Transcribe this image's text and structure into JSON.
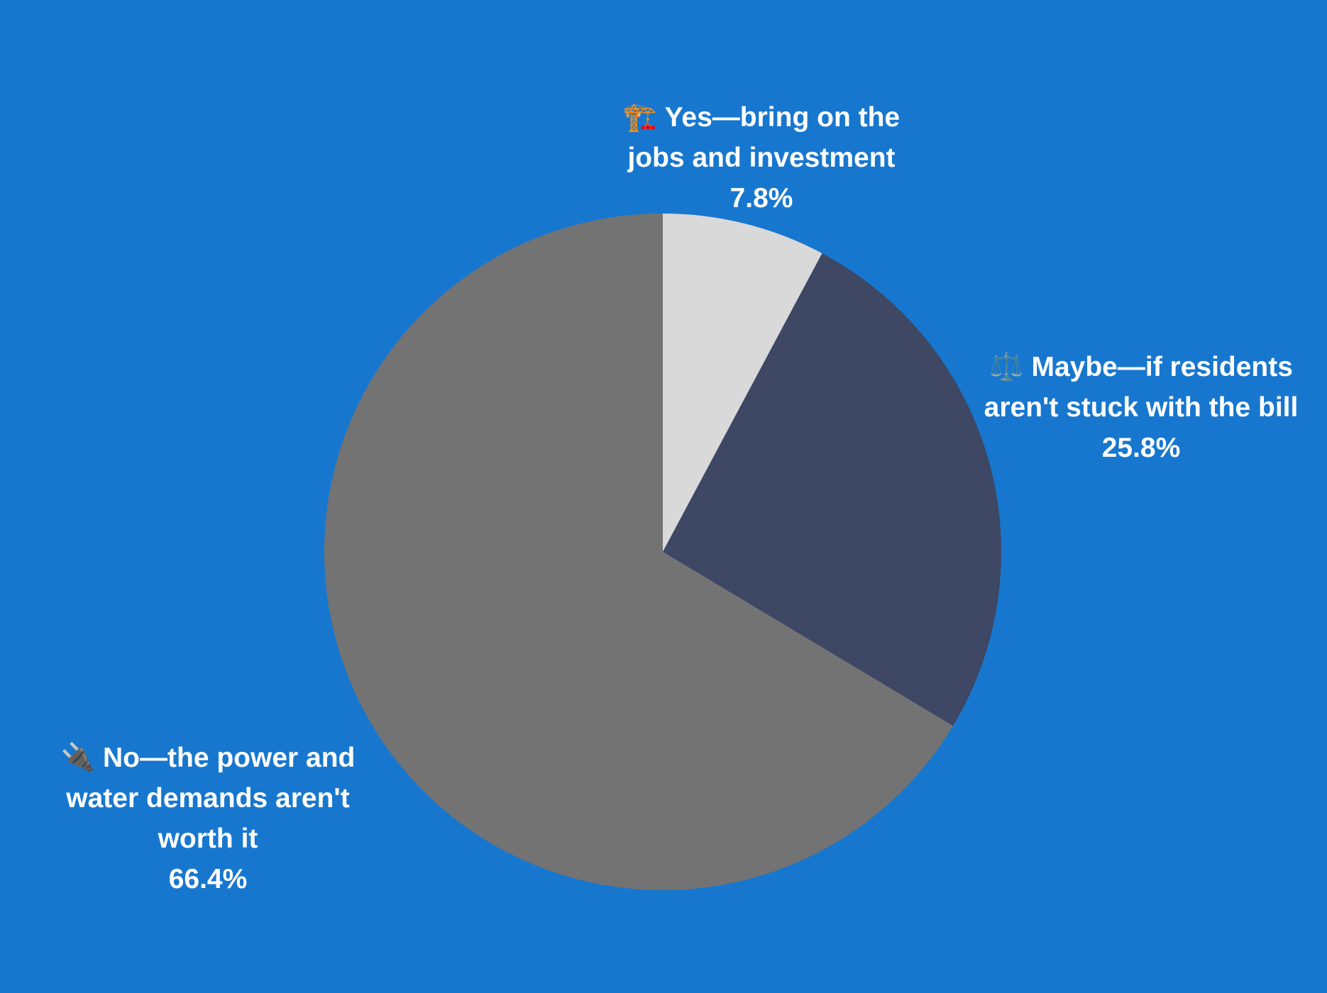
{
  "chart_data": {
    "type": "pie",
    "categories": [
      "🏗️ Yes—bring on the jobs and investment",
      "⚖️ Maybe—if residents aren't stuck with the bill",
      "🔌 No—the power and water demands aren't worth it"
    ],
    "values": [
      7.8,
      25.8,
      66.4
    ],
    "value_labels": [
      "7.8%",
      "25.8%",
      "66.4%"
    ],
    "colors": [
      "#d9d9d9",
      "#3e4763",
      "#737373"
    ]
  }
}
